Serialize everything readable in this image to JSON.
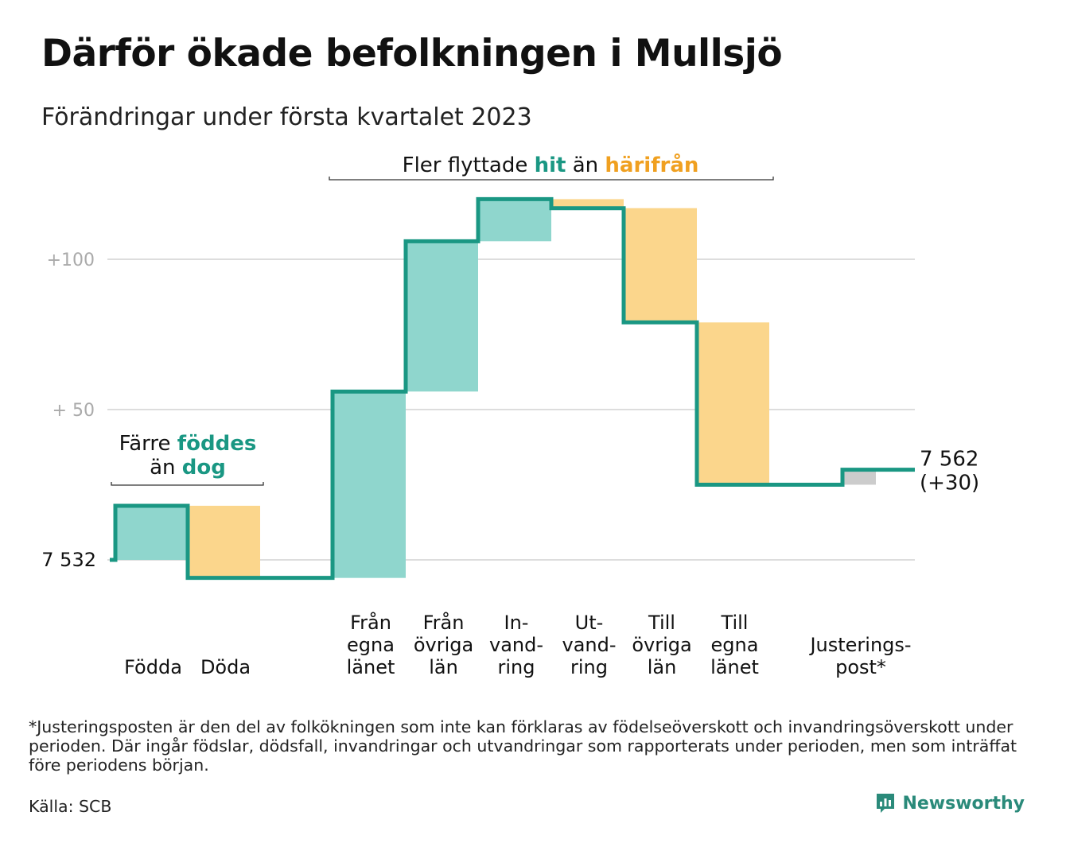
{
  "header": {
    "title": "Därför ökade befolkningen i Mullsjö",
    "subtitle": "Förändringar under första kvartalet 2023"
  },
  "colors": {
    "increase": "#8fd6cd",
    "decrease": "#fbd68c",
    "adjustment": "#cccccc",
    "line": "#1a9783",
    "teal_text": "#1a9783",
    "orange_text": "#f0a020",
    "grid": "#dddddd",
    "axis_text": "#aaaaaa"
  },
  "chart_data": {
    "type": "waterfall",
    "start": {
      "label": "7 532",
      "value": 7532
    },
    "end": {
      "label": "7 562",
      "change_label": "(+30)",
      "value": 7562
    },
    "yticks": [
      {
        "value": 100,
        "label": "+100"
      },
      {
        "value": 50,
        "label": "+ 50"
      }
    ],
    "grid": true,
    "steps": [
      {
        "key": "fodda",
        "category": [
          "Födda"
        ],
        "change": 18,
        "kind": "increase"
      },
      {
        "key": "doda",
        "category": [
          "Döda"
        ],
        "change": -24,
        "kind": "decrease"
      },
      {
        "key": "fran-egna-lanet",
        "category": [
          "Från",
          "egna",
          "länet"
        ],
        "change": 62,
        "kind": "increase"
      },
      {
        "key": "fran-ovriga-lan",
        "category": [
          "Från",
          "övriga",
          "län"
        ],
        "change": 50,
        "kind": "increase"
      },
      {
        "key": "invandring",
        "category": [
          "In-",
          "vand-",
          "ring"
        ],
        "change": 14,
        "kind": "increase"
      },
      {
        "key": "utvandring",
        "category": [
          "Ut-",
          "vand-",
          "ring"
        ],
        "change": -3,
        "kind": "decrease"
      },
      {
        "key": "till-ovriga-lan",
        "category": [
          "Till",
          "övriga",
          "län"
        ],
        "change": -38,
        "kind": "decrease"
      },
      {
        "key": "till-egna-lanet",
        "category": [
          "Till",
          "egna",
          "länet"
        ],
        "change": -54,
        "kind": "decrease"
      },
      {
        "key": "justeringspost",
        "category": [
          "Justerings-",
          "post*"
        ],
        "change": 5,
        "kind": "adjustment"
      }
    ],
    "annotations": [
      {
        "key": "fodde",
        "lines": [
          [
            "Färre ",
            "föddes"
          ],
          [
            "än ",
            "dog"
          ]
        ]
      },
      {
        "key": "flytt",
        "lines": [
          [
            "Fler flyttade ",
            "hit",
            " än ",
            "härifrån"
          ]
        ]
      }
    ]
  },
  "footnote": "*Justeringsposten är den del av folkökningen som inte kan förklaras av födelseöverskott och invandringsöverskott under perioden. Där ingår födslar, dödsfall, invandringar och utvandringar som rapporterats under perioden, men som inträffat före periodens början.",
  "source": "Källa: SCB",
  "brand": {
    "name": "Newsworthy",
    "icon": "newsworthy-logo-icon"
  }
}
